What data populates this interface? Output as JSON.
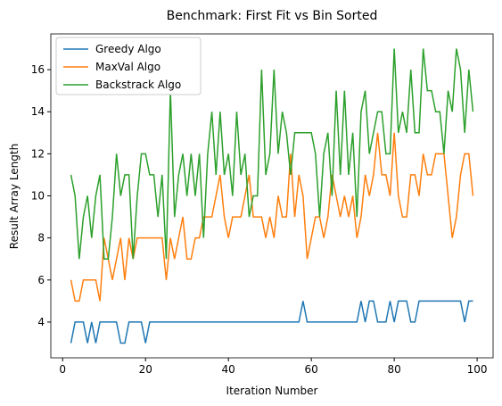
{
  "chart_data": {
    "type": "line",
    "title": "Benchmark: First Fit vs Bin Sorted",
    "x_label": "Iteration Number",
    "y_label": "Result Array Length",
    "x": [
      2,
      3,
      4,
      5,
      6,
      7,
      8,
      9,
      10,
      11,
      12,
      13,
      14,
      15,
      16,
      17,
      18,
      19,
      20,
      21,
      22,
      23,
      24,
      25,
      26,
      27,
      28,
      29,
      30,
      31,
      32,
      33,
      34,
      35,
      36,
      37,
      38,
      39,
      40,
      41,
      42,
      43,
      44,
      45,
      46,
      47,
      48,
      49,
      50,
      51,
      52,
      53,
      54,
      55,
      56,
      57,
      58,
      59,
      60,
      61,
      62,
      63,
      64,
      65,
      66,
      67,
      68,
      69,
      70,
      71,
      72,
      73,
      74,
      75,
      76,
      77,
      78,
      79,
      80,
      81,
      82,
      83,
      84,
      85,
      86,
      87,
      88,
      89,
      90,
      91,
      92,
      93,
      94,
      95,
      96,
      97,
      98,
      99
    ],
    "series": [
      {
        "name": "Greedy Algo",
        "color": "#1f77b4",
        "values": [
          3,
          4,
          4,
          4,
          3,
          4,
          3,
          4,
          4,
          4,
          4,
          4,
          3,
          3,
          4,
          4,
          4,
          4,
          3,
          4,
          4,
          4,
          4,
          4,
          4,
          4,
          4,
          4,
          4,
          4,
          4,
          4,
          4,
          4,
          4,
          4,
          4,
          4,
          4,
          4,
          4,
          4,
          4,
          4,
          4,
          4,
          4,
          4,
          4,
          4,
          4,
          4,
          4,
          4,
          4,
          4,
          5,
          4,
          4,
          4,
          4,
          4,
          4,
          4,
          4,
          4,
          4,
          4,
          4,
          4,
          5,
          4,
          5,
          5,
          4,
          4,
          4,
          5,
          4,
          5,
          5,
          5,
          4,
          4,
          5,
          5,
          5,
          5,
          5,
          5,
          5,
          5,
          5,
          5,
          5,
          4,
          5,
          5
        ]
      },
      {
        "name": "MaxVal Algo",
        "color": "#ff7f0e",
        "values": [
          6,
          5,
          5,
          6,
          6,
          6,
          6,
          5,
          8,
          7,
          6,
          7,
          8,
          6,
          8,
          7,
          8,
          8,
          8,
          8,
          8,
          8,
          8,
          6,
          8,
          7,
          8,
          9,
          7,
          7,
          8,
          8,
          9,
          9,
          9,
          10,
          11,
          9,
          8,
          9,
          9,
          9,
          10,
          11,
          9,
          9,
          9,
          8,
          9,
          8,
          10,
          9,
          9,
          12,
          9,
          11,
          10,
          7,
          8,
          9,
          9,
          8,
          9,
          11,
          10,
          9,
          10,
          9,
          10,
          8,
          9,
          11,
          10,
          11,
          13,
          11,
          11,
          10,
          13,
          10,
          9,
          9,
          11,
          11,
          10,
          12,
          11,
          11,
          12,
          12,
          12,
          10,
          8,
          9,
          11,
          12,
          12,
          10
        ]
      },
      {
        "name": "Backstrack Algo",
        "color": "#2ca02c",
        "values": [
          11,
          10,
          7,
          9,
          10,
          8,
          10,
          11,
          7,
          7,
          9,
          12,
          10,
          11,
          11,
          7,
          10,
          12,
          12,
          11,
          11,
          9,
          11,
          7,
          15,
          9,
          11,
          12,
          10,
          12,
          10,
          12,
          8,
          12,
          14,
          11,
          14,
          11,
          12,
          10,
          14,
          11,
          12,
          9,
          10,
          10,
          16,
          11,
          12,
          16,
          12,
          14,
          13,
          11,
          13,
          13,
          13,
          13,
          13,
          12,
          9,
          12,
          13,
          10,
          15,
          11,
          15,
          11,
          13,
          9,
          14,
          15,
          12,
          13,
          14,
          14,
          12,
          12,
          17,
          13,
          14,
          13,
          16,
          13,
          13,
          17,
          15,
          15,
          14,
          14,
          12,
          15,
          14,
          17,
          16,
          13,
          16,
          14
        ]
      }
    ],
    "xlim": [
      -2.85,
      103.85
    ],
    "ylim": [
      2.3,
      17.7
    ],
    "xticks": [
      0,
      20,
      40,
      60,
      80,
      100
    ],
    "yticks": [
      4,
      6,
      8,
      10,
      12,
      14,
      16
    ],
    "legend": "upper left"
  }
}
